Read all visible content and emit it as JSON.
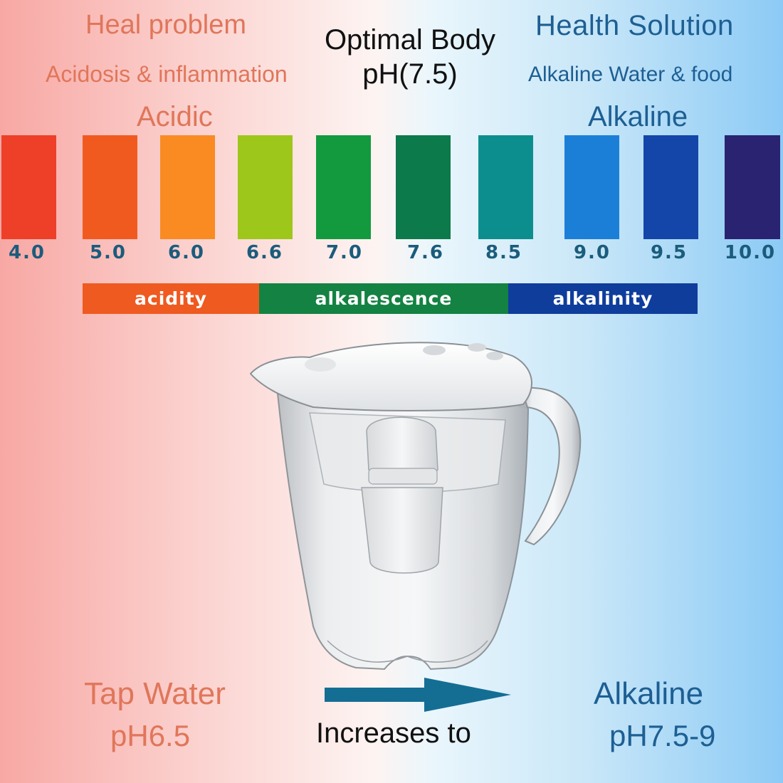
{
  "left_header": {
    "title": "Heal problem",
    "subtitle": "Acidosis & inflammation",
    "label": "Acidic"
  },
  "center_header": {
    "line1": "Optimal Body",
    "line2": "pH(7.5)"
  },
  "right_header": {
    "title": "Health Solution",
    "subtitle": "Alkaline Water & food",
    "label": "Alkaline"
  },
  "ph_scale": [
    {
      "value": "4.0",
      "color": "#ee3f28"
    },
    {
      "value": "5.0",
      "color": "#f15a1f"
    },
    {
      "value": "6.0",
      "color": "#f98b22"
    },
    {
      "value": "6.6",
      "color": "#9ec71b"
    },
    {
      "value": "7.0",
      "color": "#139a3f"
    },
    {
      "value": "7.6",
      "color": "#0c7a4a"
    },
    {
      "value": "8.5",
      "color": "#0d8e8e"
    },
    {
      "value": "9.0",
      "color": "#1b7fd8"
    },
    {
      "value": "9.5",
      "color": "#1346a8"
    },
    {
      "value": "10.0",
      "color": "#2a2371"
    }
  ],
  "categories": [
    {
      "label": "acidity",
      "color": "#ef5a20"
    },
    {
      "label": "alkalescence",
      "color": "#138242"
    },
    {
      "label": "alkalinity",
      "color": "#0f3d9c"
    }
  ],
  "bottom": {
    "tap_title": "Tap Water",
    "tap_ph": "pH6.5",
    "arrow_text": "Increases to",
    "alk_title": "Alkaline",
    "alk_ph": "pH7.5-9",
    "arrow_color": "#146e94"
  }
}
